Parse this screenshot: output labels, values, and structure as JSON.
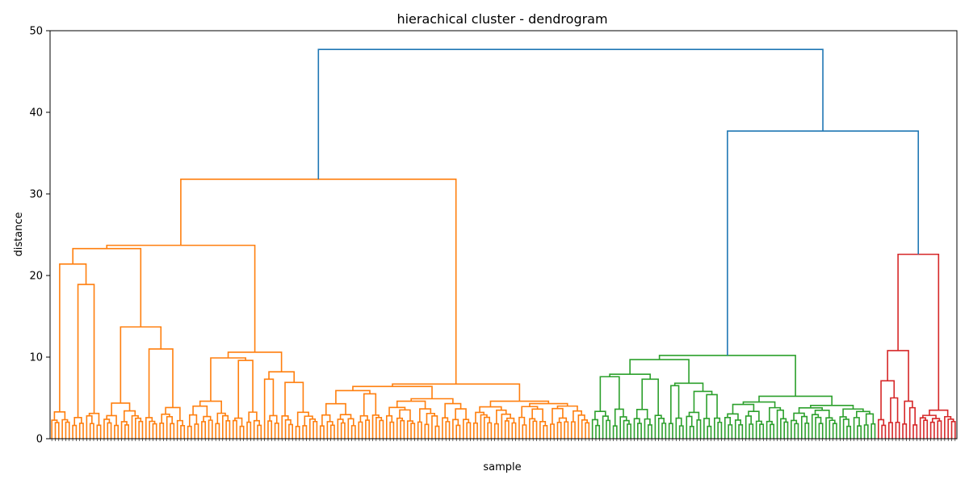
{
  "chart_data": {
    "type": "dendrogram",
    "title": "hierachical cluster - dendrogram",
    "xlabel": "sample",
    "ylabel": "distance",
    "ylim": [
      0,
      50
    ],
    "yticks": [
      0,
      10,
      20,
      30,
      40,
      50
    ],
    "grid": false,
    "n_samples": 260,
    "clusters": [
      {
        "color": "#ff7f0e",
        "leaf_range": [
          0,
          154
        ],
        "internal_heights": [
          31.8,
          23.7,
          23.3,
          21.4,
          18.9,
          13.7,
          11.0,
          10.6,
          9.9,
          9.6,
          8.2,
          7.3,
          6.9,
          6.5,
          6.4,
          5.9,
          5.5,
          4.8,
          4.3,
          4.2,
          3.9,
          3.5,
          2.9,
          2.5,
          1.8
        ]
      },
      {
        "color": "#2ca02c",
        "leaf_range": [
          155,
          236
        ],
        "internal_heights": [
          10.2,
          9.7,
          7.8,
          7.6,
          7.3,
          6.6,
          6.5,
          5.8,
          5.4,
          5.2,
          4.5,
          4.2,
          3.8,
          3.5,
          3.1,
          2.9,
          2.4,
          1.9
        ]
      },
      {
        "color": "#d62728",
        "leaf_range": [
          237,
          259
        ],
        "internal_heights": [
          22.6,
          10.8,
          7.1,
          5.0,
          4.6,
          3.8,
          3.5,
          2.8,
          2.2,
          1.9,
          1.3
        ]
      }
    ],
    "top_links": [
      {
        "color": "#1f77b4",
        "height": 47.7,
        "joins": [
          "orange cluster",
          "green+red group"
        ]
      },
      {
        "color": "#1f77b4",
        "height": 37.7,
        "joins": [
          "green cluster",
          "red cluster"
        ]
      }
    ],
    "link_color_above_threshold": "#1f77b4"
  }
}
